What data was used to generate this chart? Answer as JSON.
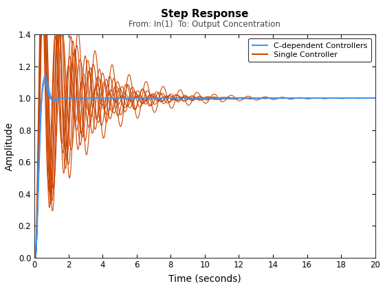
{
  "title": "Step Response",
  "subtitle": "From: In(1)  To: Output Concentration",
  "xlabel": "Time (seconds)",
  "ylabel": "Amplitude",
  "xlim": [
    0,
    20
  ],
  "ylim": [
    0,
    1.4
  ],
  "xticks": [
    0,
    2,
    4,
    6,
    8,
    10,
    12,
    14,
    16,
    18,
    20
  ],
  "yticks": [
    0,
    0.2,
    0.4,
    0.6,
    0.8,
    1.0,
    1.2,
    1.4
  ],
  "orange_color": "#CC4400",
  "blue_color": "#3399FF",
  "legend_labels": [
    "C-dependent Controllers",
    "Single Controller"
  ],
  "title_fontsize": 11,
  "subtitle_fontsize": 8.5,
  "axis_label_fontsize": 10,
  "tick_fontsize": 8.5
}
